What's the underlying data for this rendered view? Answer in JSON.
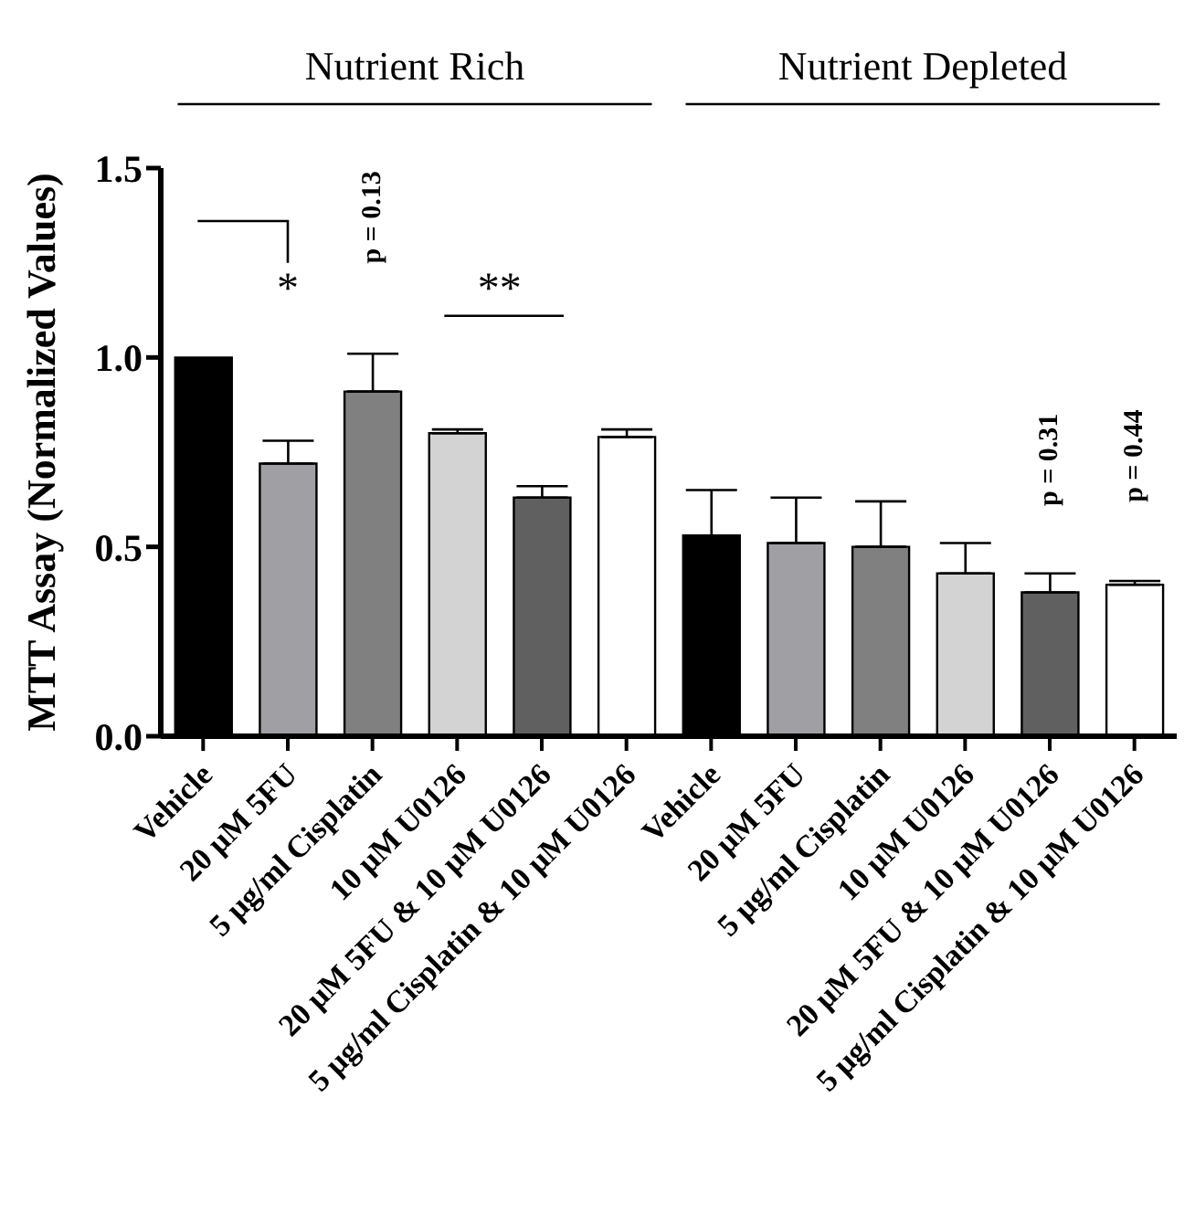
{
  "chart_data": {
    "type": "bar",
    "ylabel": "MTT Assay (Normalized Values)",
    "categories": [
      "Vehicle",
      "20 μM 5FU",
      "5 μg/ml Cisplatin",
      "10 μM U0126",
      "20 μM 5FU & 10 μM U0126",
      "5 μg/ml Cisplatin & 10 μM U0126",
      "Vehicle",
      "20 μM 5FU",
      "5 μg/ml Cisplatin",
      "10 μM U0126",
      "20 μM 5FU & 10 μM U0126",
      "5 μg/ml Cisplatin & 10 μM U0126"
    ],
    "values": [
      1.0,
      0.72,
      0.91,
      0.8,
      0.63,
      0.79,
      0.53,
      0.51,
      0.5,
      0.43,
      0.38,
      0.4
    ],
    "errors": [
      null,
      [
        0.72,
        0.78
      ],
      [
        0.91,
        1.01
      ],
      [
        0.8,
        0.81
      ],
      [
        0.63,
        0.66
      ],
      [
        0.79,
        0.81
      ],
      [
        0.53,
        0.65
      ],
      [
        0.51,
        0.63
      ],
      [
        0.5,
        0.62
      ],
      [
        0.43,
        0.51
      ],
      [
        0.38,
        0.43
      ],
      [
        0.4,
        0.41
      ]
    ],
    "colors": [
      "#000000",
      "#a0a0a4",
      "#808080",
      "#d3d3d3",
      "#606060",
      "#ffffff",
      "#000000",
      "#a0a0a4",
      "#808080",
      "#d3d3d3",
      "#606060",
      "#ffffff"
    ],
    "ylim": [
      0,
      1.5
    ],
    "yticks": [
      {
        "value": 0,
        "label": "0.0"
      },
      0.5,
      {
        "value": 1,
        "label": "1.0"
      },
      1.5
    ],
    "annotations": [
      "Nutrient Rich",
      "Nutrient Depleted",
      "*",
      "p = 0.13",
      "**",
      "p = 0.31",
      "p = 0.44"
    ]
  }
}
